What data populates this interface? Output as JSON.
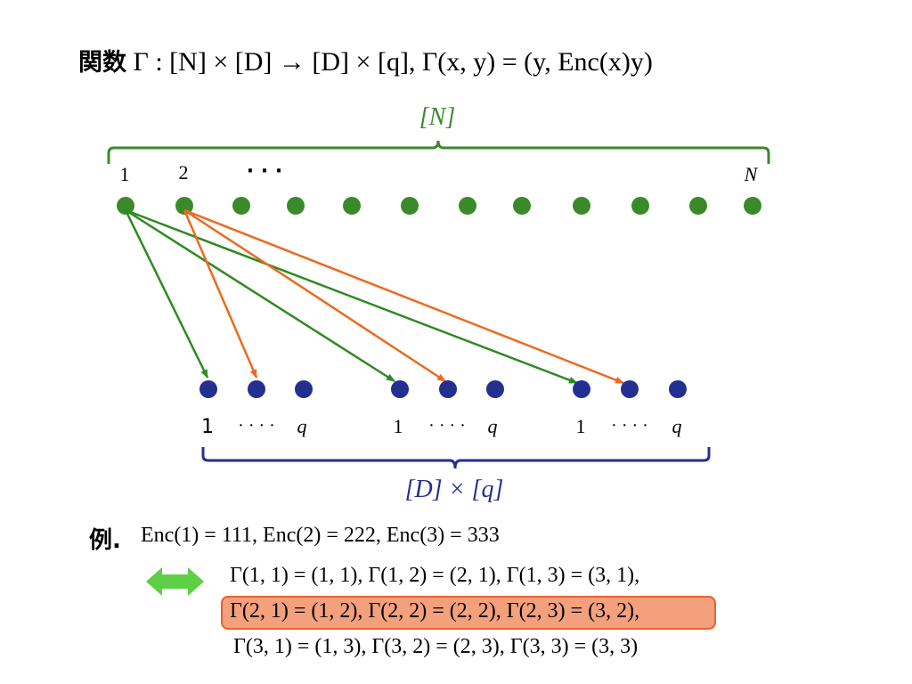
{
  "title": {
    "prefix": "関数",
    "formula": "Γ : [N] × [D] → [D] × [q],  Γ(x, y) = (y, Enc(x)y)"
  },
  "domain_brace_label": "[N]",
  "domain_labels": {
    "first": "1",
    "second": "2",
    "ellipsis": "· · ·",
    "last": "N"
  },
  "domain_node_count": 12,
  "codomain_groups": [
    {
      "start": "1",
      "dots": "· · · ·",
      "end": "q"
    },
    {
      "start": "1",
      "dots": "· · · ·",
      "end": "q"
    },
    {
      "start": "1",
      "dots": "· · · ·",
      "end": "q"
    }
  ],
  "codomain_brace_label": "[D] × [q]",
  "example": {
    "heading": "例.",
    "enc_line": "Enc(1) = 111,    Enc(2) = 222,    Enc(3) = 333",
    "gamma_lines": [
      "Γ(1, 1) = (1, 1), Γ(1, 2) = (2, 1), Γ(1, 3) = (3, 1),",
      "Γ(2, 1) = (1, 2), Γ(2, 2) = (2, 2), Γ(2, 3) = (3, 2),",
      "Γ(3, 1) = (1, 3), Γ(3, 2) = (2, 3), Γ(3, 3) = (3, 3)"
    ],
    "highlighted_line_index": 1
  },
  "colors": {
    "domain": "#3a8a2a",
    "codomain": "#23308f",
    "arrow_green": "#2f8a22",
    "arrow_orange": "#ec6a1f",
    "double_arrow": "#5fcf45",
    "highlight_fill": "#f4a07c",
    "highlight_border": "#e8632b"
  },
  "icons": {
    "equivalence": "double-headed-arrow-icon"
  }
}
